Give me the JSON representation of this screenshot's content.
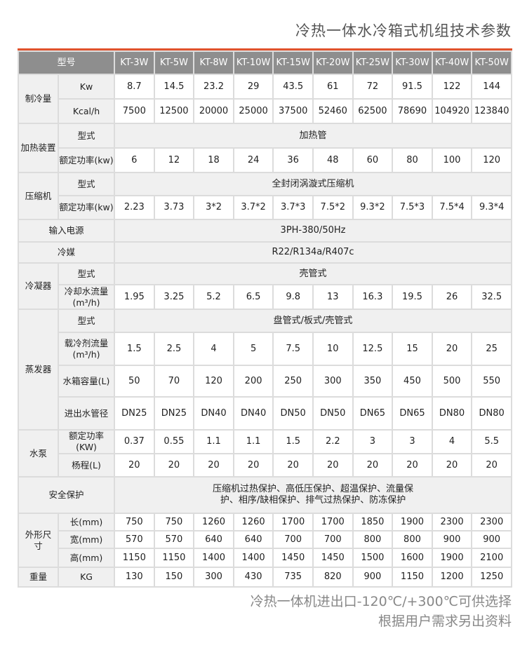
{
  "title": "冷热一体水冷箱式机组技术参数",
  "colors": {
    "accent": "#e0522c",
    "header_bg": "#8e8e8e",
    "label_bg": "#f0f0f0"
  },
  "header": {
    "label": "型号",
    "models": [
      "KT-3W",
      "KT-5W",
      "KT-8W",
      "KT-10W",
      "KT-15W",
      "KT-20W",
      "KT-25W",
      "KT-30W",
      "KT-40W",
      "KT-50W"
    ]
  },
  "groups": [
    {
      "label": "制冷量",
      "rows": [
        {
          "label": "Kw",
          "values": [
            "8.7",
            "14.5",
            "23.2",
            "29",
            "43.5",
            "61",
            "72",
            "91.5",
            "122",
            "144"
          ]
        },
        {
          "label": "Kcal/h",
          "values": [
            "7500",
            "12500",
            "20000",
            "25000",
            "37500",
            "52460",
            "62500",
            "78690",
            "104920",
            "123840"
          ]
        }
      ]
    },
    {
      "label": "加热装置",
      "rows": [
        {
          "label": "型式",
          "span": "加热管"
        },
        {
          "label": "额定功率(kw)",
          "values": [
            "6",
            "12",
            "18",
            "24",
            "36",
            "48",
            "60",
            "80",
            "100",
            "120"
          ]
        }
      ]
    },
    {
      "label": "压缩机",
      "rows": [
        {
          "label": "型式",
          "span": "全封闭涡漩式压缩机"
        },
        {
          "label": "额定功率(kw)",
          "values": [
            "2.23",
            "3.73",
            "3*2",
            "3.7*2",
            "3.7*3",
            "7.5*2",
            "9.3*2",
            "7.5*3",
            "7.5*4",
            "9.3*4"
          ]
        }
      ]
    },
    {
      "label": "输入电源",
      "rows": [
        {
          "span": "3PH-380/50Hz"
        }
      ]
    },
    {
      "label": "冷媒",
      "rows": [
        {
          "span": "R22/R134a/R407c"
        }
      ]
    },
    {
      "label": "冷凝器",
      "rows": [
        {
          "label": "型式",
          "span": "壳管式"
        },
        {
          "label": "冷却水流量(m³/h)",
          "values": [
            "1.95",
            "3.25",
            "5.2",
            "6.5",
            "9.8",
            "13",
            "16.3",
            "19.5",
            "26",
            "32.5"
          ]
        }
      ]
    },
    {
      "label": "蒸发器",
      "rows": [
        {
          "label": "型式",
          "span": "盘管式/板式/壳管式"
        },
        {
          "label": "载冷剂流量(m³/h)",
          "values": [
            "1.5",
            "2.5",
            "4",
            "5",
            "7.5",
            "10",
            "12.5",
            "15",
            "20",
            "25"
          ]
        },
        {
          "label": "水箱容量(L)",
          "values": [
            "50",
            "70",
            "120",
            "200",
            "250",
            "300",
            "350",
            "450",
            "500",
            "550"
          ]
        },
        {
          "label": "进出水管径",
          "values": [
            "DN25",
            "DN25",
            "DN40",
            "DN40",
            "DN50",
            "DN50",
            "DN65",
            "DN65",
            "DN80",
            "DN80"
          ]
        }
      ]
    },
    {
      "label": "水泵",
      "rows": [
        {
          "label": "额定功率(KW)",
          "values": [
            "0.37",
            "0.55",
            "1.1",
            "1.1",
            "1.5",
            "2.2",
            "3",
            "3",
            "4",
            "5.5"
          ]
        },
        {
          "label": "杨程(L)",
          "values": [
            "20",
            "20",
            "20",
            "20",
            "20",
            "20",
            "20",
            "20",
            "20",
            "20"
          ]
        }
      ]
    },
    {
      "label": "安全保护",
      "rows": [
        {
          "span": "压缩机过热保护、高低压保护、超温保护、流量保护、相序/缺相保护、排气过热保护、防冻保护"
        }
      ]
    },
    {
      "label": "外形尺寸",
      "rows": [
        {
          "label": "长(mm)",
          "values": [
            "750",
            "750",
            "1260",
            "1260",
            "1700",
            "1700",
            "1850",
            "1900",
            "2300",
            "2300"
          ]
        },
        {
          "label": "宽(mm)",
          "values": [
            "570",
            "570",
            "640",
            "640",
            "700",
            "700",
            "800",
            "800",
            "900",
            "900"
          ]
        },
        {
          "label": "高(mm)",
          "values": [
            "1150",
            "1150",
            "1400",
            "1400",
            "1450",
            "1450",
            "1500",
            "1600",
            "1900",
            "2100"
          ]
        }
      ]
    },
    {
      "label": "重量",
      "rows": [
        {
          "label": "KG",
          "values": [
            "130",
            "150",
            "300",
            "430",
            "735",
            "820",
            "900",
            "1150",
            "1200",
            "1250"
          ]
        }
      ]
    }
  ],
  "footer": {
    "line1": "冷热一体机进出口-120℃/+300℃可供选择",
    "line2": "根据用户需求另出资料"
  }
}
